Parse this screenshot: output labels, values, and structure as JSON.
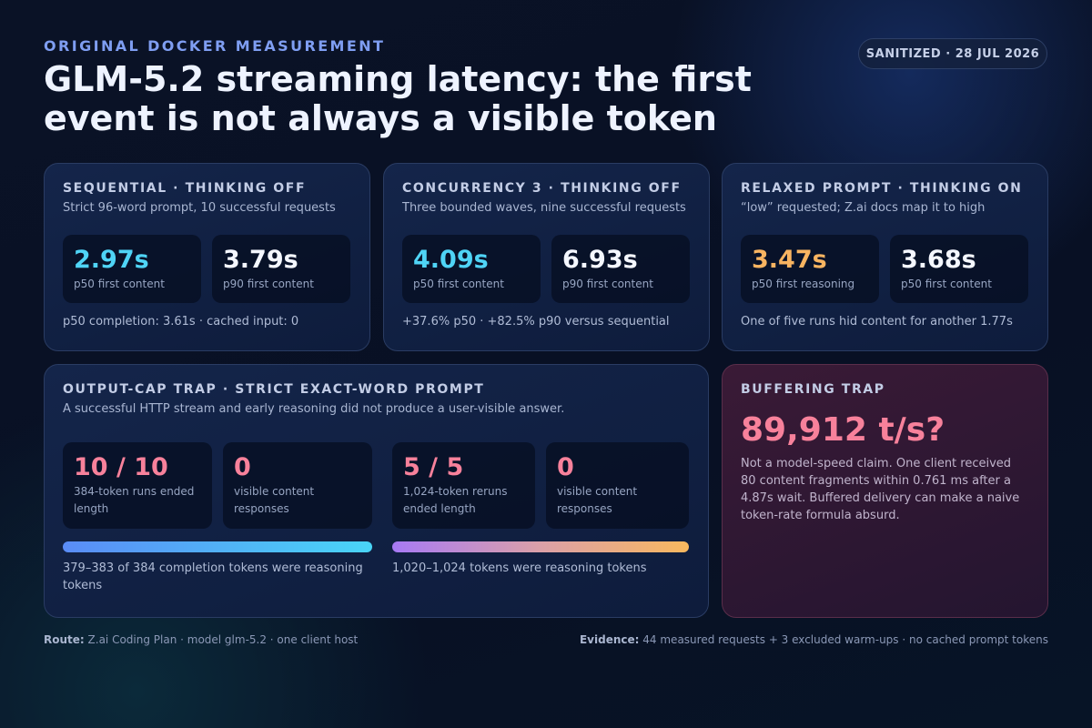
{
  "header": {
    "eyebrow": "ORIGINAL DOCKER MEASUREMENT",
    "title_lines": [
      "GLM-5.2 streaming latency: the first",
      "event is not always a visible token"
    ],
    "badge": "SANITIZED · 28 JUL 2026"
  },
  "cards": [
    {
      "title": "SEQUENTIAL · THINKING OFF",
      "subtitle": "Strict 96-word prompt, 10 successful requests",
      "stats": [
        {
          "value": "2.97s",
          "label": "p50 first content"
        },
        {
          "value": "3.79s",
          "label": "p90 first content"
        }
      ],
      "note": "p50 completion: 3.61s · cached input: 0"
    },
    {
      "title": "CONCURRENCY 3 · THINKING OFF",
      "subtitle": "Three bounded waves, nine successful requests",
      "stats": [
        {
          "value": "4.09s",
          "label": "p50 first content"
        },
        {
          "value": "6.93s",
          "label": "p90 first content"
        }
      ],
      "note": "+37.6% p50 · +82.5% p90 versus sequential"
    },
    {
      "title": "RELAXED PROMPT · THINKING ON",
      "subtitle": "“low” requested; Z.ai docs map it to high",
      "stats": [
        {
          "value": "3.47s",
          "label": "p50 first reasoning"
        },
        {
          "value": "3.68s",
          "label": "p50 first content"
        }
      ],
      "note": "One of five runs hid content for another 1.77s"
    }
  ],
  "trap": {
    "title": "OUTPUT-CAP TRAP · STRICT EXACT-WORD PROMPT",
    "subtitle": "A successful HTTP stream and early reasoning did not produce a user-visible answer.",
    "groups": [
      {
        "stats": [
          {
            "value": "10 / 10",
            "label": "384-token runs ended length"
          },
          {
            "value": "0",
            "label": "visible content responses"
          }
        ],
        "caption": "379–383 of 384 completion tokens were reasoning tokens"
      },
      {
        "stats": [
          {
            "value": "5 / 5",
            "label": "1,024-token reruns ended length"
          },
          {
            "value": "0",
            "label": "visible content responses"
          }
        ],
        "caption": "1,020–1,024 tokens were reasoning tokens"
      }
    ]
  },
  "buffer": {
    "title": "BUFFERING TRAP",
    "value": "89,912 t/s?",
    "text": "Not a model-speed claim. One client received 80 content fragments within 0.761 ms after a 4.87s wait. Buffered delivery can make a naive token-rate formula absurd."
  },
  "footer": {
    "route_label": "Route:",
    "route": "Z.ai Coding Plan · model glm-5.2 · one client host",
    "evidence_label": "Evidence:",
    "evidence": "44 measured requests + 3 excluded warm-ups · no cached prompt tokens"
  }
}
